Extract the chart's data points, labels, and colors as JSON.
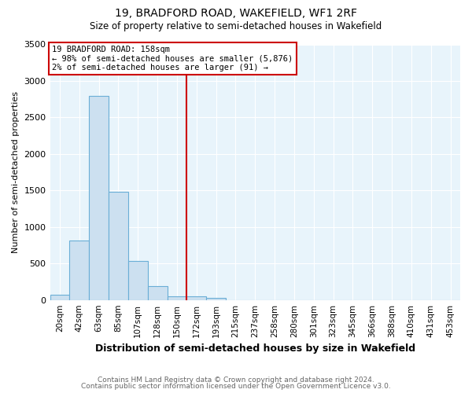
{
  "title1": "19, BRADFORD ROAD, WAKEFIELD, WF1 2RF",
  "title2": "Size of property relative to semi-detached houses in Wakefield",
  "xlabel": "Distribution of semi-detached houses by size in Wakefield",
  "ylabel": "Number of semi-detached properties",
  "categories": [
    "20sqm",
    "42sqm",
    "63sqm",
    "85sqm",
    "107sqm",
    "128sqm",
    "150sqm",
    "172sqm",
    "193sqm",
    "215sqm",
    "237sqm",
    "258sqm",
    "280sqm",
    "301sqm",
    "323sqm",
    "345sqm",
    "366sqm",
    "388sqm",
    "410sqm",
    "431sqm",
    "453sqm"
  ],
  "values": [
    75,
    810,
    2800,
    1480,
    540,
    190,
    55,
    50,
    30,
    0,
    0,
    0,
    0,
    0,
    0,
    0,
    0,
    0,
    0,
    0,
    0
  ],
  "bar_color": "#cce0f0",
  "bar_edge_color": "#6aaed6",
  "vline_color": "#cc0000",
  "vline_pos": 6.5,
  "annotation_title": "19 BRADFORD ROAD: 158sqm",
  "annotation_line1": "← 98% of semi-detached houses are smaller (5,876)",
  "annotation_line2": "2% of semi-detached houses are larger (91) →",
  "annotation_box_color": "#cc0000",
  "ylim": [
    0,
    3500
  ],
  "yticks": [
    0,
    500,
    1000,
    1500,
    2000,
    2500,
    3000,
    3500
  ],
  "footer1": "Contains HM Land Registry data © Crown copyright and database right 2024.",
  "footer2": "Contains public sector information licensed under the Open Government Licence v3.0.",
  "bg_color": "#ffffff",
  "plot_bg_color": "#e8f4fb"
}
